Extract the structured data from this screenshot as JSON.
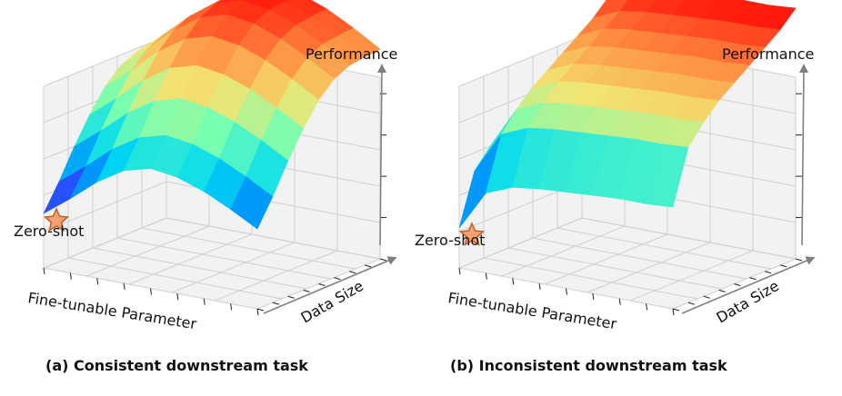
{
  "chart_data": [
    {
      "type": "surface3d",
      "caption": "(a) Consistent downstream task",
      "xlabel": "Fine-tunable Parameter",
      "ylabel": "Data Size",
      "zlabel": "Performance",
      "marker": {
        "label": "Zero-shot",
        "shape": "star",
        "color": "#f4a070",
        "edge": "#c0602a"
      },
      "surface": {
        "colormap": "rainbow",
        "x": [
          0,
          0.125,
          0.25,
          0.375,
          0.5,
          0.625,
          0.75,
          0.875,
          1
        ],
        "y": [
          0,
          0.125,
          0.25,
          0.375,
          0.5,
          0.625,
          0.75,
          0.875,
          1
        ],
        "z_edge_x0": [
          0.3,
          0.44,
          0.6,
          0.74,
          0.86,
          0.94,
          0.98,
          0.99,
          1.0
        ],
        "z_edge_y0": [
          0.3,
          0.41,
          0.53,
          0.62,
          0.66,
          0.64,
          0.59,
          0.52,
          0.44
        ]
      }
    },
    {
      "type": "surface3d",
      "caption": "(b) Inconsistent downstream task",
      "xlabel": "Fine-tunable Parameter",
      "ylabel": "Data Size",
      "zlabel": "Performance",
      "marker": {
        "label": "Zero-shot",
        "shape": "star",
        "color": "#f4a070",
        "edge": "#c0602a"
      },
      "surface": {
        "colormap": "rainbow",
        "x": [
          0,
          0.125,
          0.25,
          0.375,
          0.5,
          0.625,
          0.75,
          0.875,
          1
        ],
        "y": [
          0,
          0.125,
          0.25,
          0.375,
          0.5,
          0.625,
          0.75,
          0.875,
          1
        ],
        "z_edge_x0": [
          0.22,
          0.5,
          0.6,
          0.68,
          0.74,
          0.8,
          0.86,
          0.92,
          1.0
        ],
        "z_edge_y0": [
          0.22,
          0.44,
          0.5,
          0.52,
          0.53,
          0.54,
          0.55,
          0.55,
          0.56
        ]
      }
    }
  ],
  "colors": {
    "grid": "#cfcfcf",
    "pane": "#f2f2f2",
    "arrow": "#808080",
    "tick": "#222222"
  }
}
